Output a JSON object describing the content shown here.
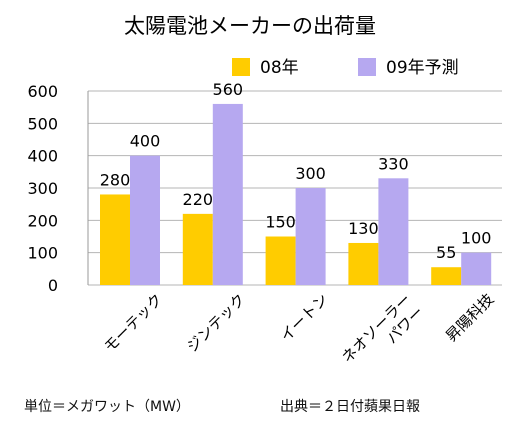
{
  "chart_data": {
    "type": "bar",
    "title": "太陽電池メーカーの出荷量",
    "categories": [
      "モーテック",
      "ジンテック",
      "イートン",
      "ネオソーラー\nパワー",
      "昇陽科技"
    ],
    "series": [
      {
        "name": "08年",
        "values": [
          280,
          220,
          150,
          130,
          55
        ],
        "color": "#ffcc00"
      },
      {
        "name": "09年予測",
        "values": [
          400,
          560,
          300,
          330,
          100
        ],
        "color": "#b6a8f0"
      }
    ],
    "ylim": [
      0,
      600
    ],
    "yticks": [
      0,
      100,
      200,
      300,
      400,
      500,
      600
    ],
    "grid": true,
    "legend_position": "top-right",
    "xlabel": "",
    "ylabel": ""
  },
  "footnote": {
    "unit": "単位＝メガワット（MW）",
    "source": "出典＝２日付蘋果日報"
  }
}
